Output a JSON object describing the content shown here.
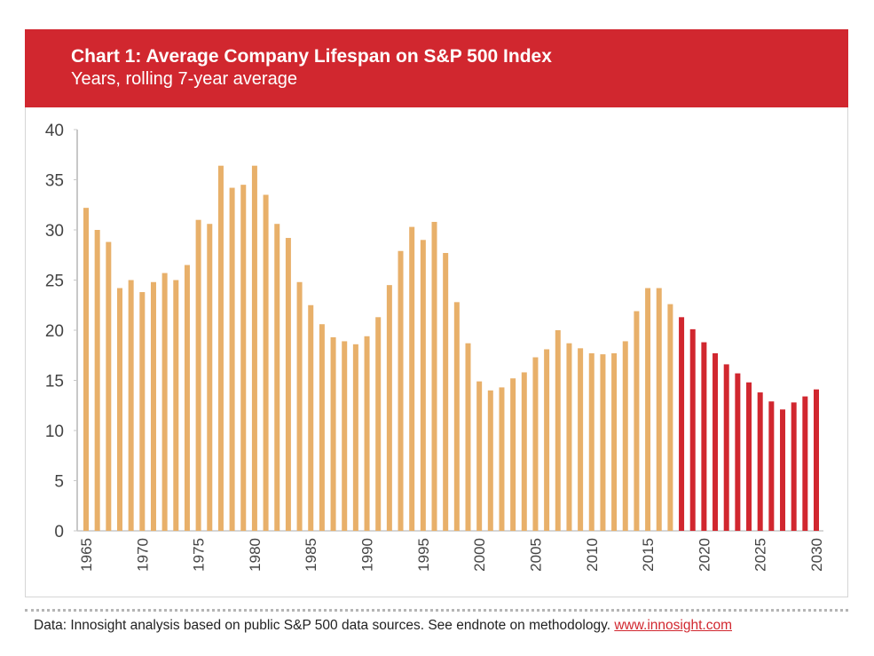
{
  "chart_data": {
    "type": "bar",
    "title": "Chart 1: Average Company Lifespan on S&P 500 Index",
    "subtitle": "Years, rolling 7-year average",
    "xlabel": "",
    "ylabel": "",
    "ylim": [
      0,
      40
    ],
    "yticks": [
      "0",
      "5",
      "10",
      "15",
      "20",
      "25",
      "30",
      "35",
      "40"
    ],
    "xticks": [
      "1965",
      "1970",
      "1975",
      "1980",
      "1985",
      "1990",
      "1995",
      "2000",
      "2005",
      "2010",
      "2015",
      "2020",
      "2025",
      "2030"
    ],
    "grid": false,
    "colors": {
      "historical": "#e8b06a",
      "forecast": "#d1272f",
      "header": "#d1272f"
    },
    "forecast_from": 2018,
    "x": [
      1965,
      1966,
      1967,
      1968,
      1969,
      1970,
      1971,
      1972,
      1973,
      1974,
      1975,
      1976,
      1977,
      1978,
      1979,
      1980,
      1981,
      1982,
      1983,
      1984,
      1985,
      1986,
      1987,
      1988,
      1989,
      1990,
      1991,
      1992,
      1993,
      1994,
      1995,
      1996,
      1997,
      1998,
      1999,
      2000,
      2001,
      2002,
      2003,
      2004,
      2005,
      2006,
      2007,
      2008,
      2009,
      2010,
      2011,
      2012,
      2013,
      2014,
      2015,
      2016,
      2017,
      2018,
      2019,
      2020,
      2021,
      2022,
      2023,
      2024,
      2025,
      2026,
      2027,
      2028,
      2029,
      2030
    ],
    "values": [
      32.2,
      30.0,
      28.8,
      24.2,
      25.0,
      23.8,
      24.8,
      25.7,
      25.0,
      26.5,
      31.0,
      30.6,
      36.4,
      34.2,
      34.5,
      36.4,
      33.5,
      30.6,
      29.2,
      24.8,
      22.5,
      20.6,
      19.3,
      18.9,
      18.6,
      19.4,
      21.3,
      24.5,
      27.9,
      30.3,
      29.0,
      30.8,
      27.7,
      22.8,
      18.7,
      14.9,
      14.0,
      14.3,
      15.2,
      15.8,
      17.3,
      18.1,
      20.0,
      18.7,
      18.2,
      17.7,
      17.6,
      17.7,
      18.9,
      21.9,
      24.2,
      24.2,
      22.6,
      21.3,
      20.1,
      18.8,
      17.7,
      16.6,
      15.7,
      14.8,
      13.8,
      12.9,
      12.1,
      12.8,
      13.4,
      14.1
    ]
  },
  "footer": {
    "source": "Data: Innosight analysis based on public S&P 500 data sources. See endnote on methodology.",
    "link": "www.innosight.com"
  }
}
